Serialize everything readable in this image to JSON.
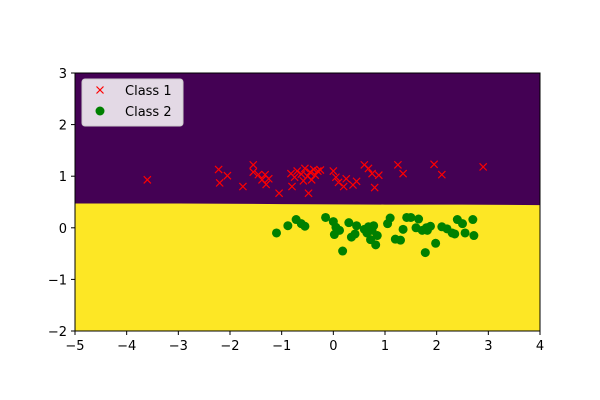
{
  "chart_data": {
    "type": "scatter",
    "title": "",
    "xlabel": "",
    "ylabel": "",
    "xlim": [
      -5,
      4
    ],
    "ylim": [
      -2,
      3
    ],
    "xticks": [
      -5,
      -4,
      -3,
      -2,
      -1,
      0,
      1,
      2,
      3,
      4
    ],
    "yticks": [
      -2,
      -1,
      0,
      1,
      2,
      3
    ],
    "grid": false,
    "legend_position": "top-left",
    "decision_regions": {
      "top_color": "#440154",
      "bottom_color": "#fde725",
      "boundary": [
        [
          -5,
          0.47
        ],
        [
          -3.0,
          0.47
        ],
        [
          -1.0,
          0.46
        ],
        [
          1.0,
          0.45
        ],
        [
          2.5,
          0.45
        ],
        [
          4,
          0.44
        ]
      ]
    },
    "series": [
      {
        "name": "Class 1",
        "marker": "x",
        "color": "#ff0000",
        "points": [
          [
            -3.6,
            0.93
          ],
          [
            -2.22,
            1.13
          ],
          [
            -2.2,
            0.87
          ],
          [
            -2.05,
            1.01
          ],
          [
            -1.75,
            0.8
          ],
          [
            -1.55,
            1.22
          ],
          [
            -1.55,
            1.08
          ],
          [
            -1.45,
            1.03
          ],
          [
            -1.38,
            0.93
          ],
          [
            -1.32,
            1.03
          ],
          [
            -1.3,
            0.84
          ],
          [
            -1.25,
            0.95
          ],
          [
            -1.05,
            0.67
          ],
          [
            -0.82,
            1.05
          ],
          [
            -0.8,
            0.8
          ],
          [
            -0.75,
            0.98
          ],
          [
            -0.7,
            1.1
          ],
          [
            -0.62,
            1.04
          ],
          [
            -0.58,
            0.91
          ],
          [
            -0.55,
            1.15
          ],
          [
            -0.5,
            1.0
          ],
          [
            -0.48,
            0.67
          ],
          [
            -0.45,
            1.08
          ],
          [
            -0.42,
            0.93
          ],
          [
            -0.38,
            1.13
          ],
          [
            -0.35,
            1.02
          ],
          [
            -0.3,
            1.1
          ],
          [
            -0.25,
            1.12
          ],
          [
            0.0,
            1.1
          ],
          [
            0.05,
            0.98
          ],
          [
            0.1,
            0.88
          ],
          [
            0.2,
            0.8
          ],
          [
            0.25,
            0.95
          ],
          [
            0.38,
            0.83
          ],
          [
            0.45,
            0.9
          ],
          [
            0.6,
            1.22
          ],
          [
            0.68,
            1.15
          ],
          [
            0.75,
            1.05
          ],
          [
            0.8,
            0.78
          ],
          [
            0.88,
            1.02
          ],
          [
            1.25,
            1.22
          ],
          [
            1.35,
            1.05
          ],
          [
            1.95,
            1.23
          ],
          [
            2.1,
            1.03
          ],
          [
            2.9,
            1.18
          ]
        ]
      },
      {
        "name": "Class 2",
        "marker": "o",
        "color": "#008000",
        "points": [
          [
            -1.1,
            -0.1
          ],
          [
            -0.88,
            0.04
          ],
          [
            -0.72,
            0.16
          ],
          [
            -0.62,
            0.08
          ],
          [
            -0.55,
            0.03
          ],
          [
            -0.15,
            0.2
          ],
          [
            0.0,
            0.12
          ],
          [
            0.02,
            -0.13
          ],
          [
            0.05,
            0.01
          ],
          [
            0.12,
            -0.05
          ],
          [
            0.18,
            -0.45
          ],
          [
            0.3,
            0.1
          ],
          [
            0.35,
            -0.18
          ],
          [
            0.42,
            -0.12
          ],
          [
            0.45,
            0.04
          ],
          [
            0.6,
            -0.03
          ],
          [
            0.65,
            -0.1
          ],
          [
            0.68,
            0.02
          ],
          [
            0.72,
            -0.23
          ],
          [
            0.75,
            -0.05
          ],
          [
            0.78,
            0.04
          ],
          [
            0.82,
            -0.33
          ],
          [
            0.85,
            -0.15
          ],
          [
            1.05,
            0.08
          ],
          [
            1.1,
            0.19
          ],
          [
            1.2,
            -0.22
          ],
          [
            1.3,
            -0.24
          ],
          [
            1.35,
            -0.03
          ],
          [
            1.42,
            0.2
          ],
          [
            1.5,
            0.2
          ],
          [
            1.6,
            0.0
          ],
          [
            1.65,
            0.17
          ],
          [
            1.72,
            -0.05
          ],
          [
            1.78,
            -0.48
          ],
          [
            1.8,
            0.0
          ],
          [
            1.82,
            -0.05
          ],
          [
            1.88,
            0.03
          ],
          [
            1.98,
            -0.3
          ],
          [
            2.1,
            0.02
          ],
          [
            2.2,
            -0.02
          ],
          [
            2.3,
            -0.1
          ],
          [
            2.35,
            -0.12
          ],
          [
            2.4,
            0.16
          ],
          [
            2.5,
            0.08
          ],
          [
            2.55,
            -0.1
          ],
          [
            2.7,
            0.16
          ],
          [
            2.72,
            -0.15
          ]
        ]
      }
    ]
  }
}
